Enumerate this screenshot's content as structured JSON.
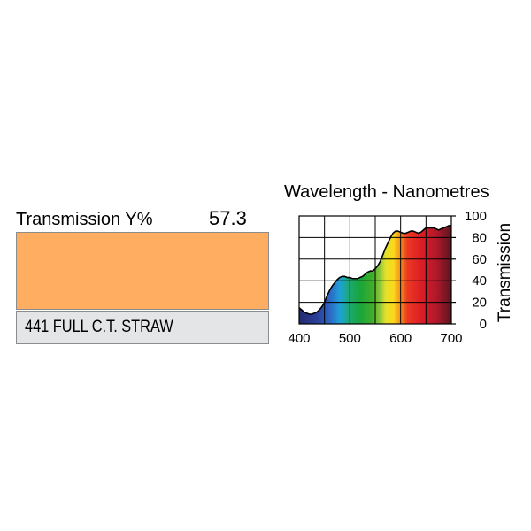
{
  "filter": {
    "transmission_label": "Transmission Y%",
    "transmission_value": "57.3",
    "name": "441 FULL C.T. STRAW",
    "swatch_color": "#ffad60"
  },
  "chart_data": {
    "type": "area",
    "title": "Wavelength - Nanometres",
    "xlabel": "",
    "ylabel": "Transmission",
    "xlim": [
      400,
      700
    ],
    "ylim": [
      0,
      100
    ],
    "x_ticks": [
      400,
      500,
      600,
      700
    ],
    "y_ticks": [
      0,
      20,
      40,
      60,
      80,
      100
    ],
    "grid": true,
    "x": [
      400,
      405,
      410,
      415,
      420,
      425,
      430,
      435,
      440,
      445,
      450,
      455,
      460,
      465,
      470,
      475,
      480,
      485,
      490,
      495,
      500,
      505,
      510,
      515,
      520,
      525,
      530,
      535,
      540,
      545,
      550,
      555,
      560,
      565,
      570,
      575,
      580,
      585,
      590,
      595,
      600,
      605,
      610,
      615,
      620,
      625,
      630,
      635,
      640,
      645,
      650,
      655,
      660,
      665,
      670,
      675,
      680,
      685,
      690,
      695,
      700
    ],
    "y": [
      15,
      13,
      11,
      10,
      9,
      9,
      10,
      11,
      13,
      16,
      20,
      26,
      31,
      35,
      38,
      41,
      43,
      44,
      44,
      43,
      43,
      42,
      42,
      42,
      43,
      44,
      46,
      48,
      49,
      49,
      51,
      54,
      58,
      64,
      70,
      75,
      80,
      84,
      86,
      86,
      85,
      84,
      84,
      85,
      86,
      86,
      85,
      84,
      85,
      87,
      89,
      89,
      89,
      89,
      88,
      87,
      88,
      89,
      90,
      91,
      91
    ]
  }
}
